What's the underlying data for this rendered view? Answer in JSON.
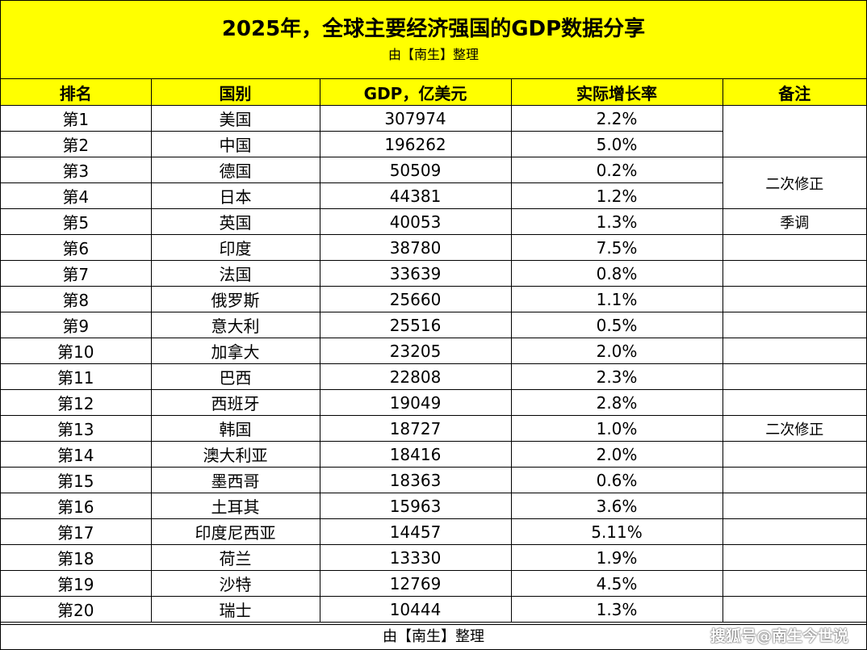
{
  "title": "2025年，全球主要经济强国的GDP数据分享",
  "subtitle": "由【南生】整理",
  "headers": [
    "排名",
    "国别",
    "GDP，亿美元",
    "实际增长率",
    "备注"
  ],
  "rows": [
    {
      "rank": "第1",
      "country": "美国",
      "gdp": "307974",
      "growth": "2.2%"
    },
    {
      "rank": "第2",
      "country": "中国",
      "gdp": "196262",
      "growth": "5.0%"
    },
    {
      "rank": "第3",
      "country": "德国",
      "gdp": "50509",
      "growth": "0.2%"
    },
    {
      "rank": "第4",
      "country": "日本",
      "gdp": "44381",
      "growth": "1.2%"
    },
    {
      "rank": "第5",
      "country": "英国",
      "gdp": "40053",
      "growth": "1.3%"
    },
    {
      "rank": "第6",
      "country": "印度",
      "gdp": "38780",
      "growth": "7.5%"
    },
    {
      "rank": "第7",
      "country": "法国",
      "gdp": "33639",
      "growth": "0.8%"
    },
    {
      "rank": "第8",
      "country": "俄罗斯",
      "gdp": "25660",
      "growth": "1.1%"
    },
    {
      "rank": "第9",
      "country": "意大利",
      "gdp": "25516",
      "growth": "0.5%"
    },
    {
      "rank": "第10",
      "country": "加拿大",
      "gdp": "23205",
      "growth": "2.0%"
    },
    {
      "rank": "第11",
      "country": "巴西",
      "gdp": "22808",
      "growth": "2.3%"
    },
    {
      "rank": "第12",
      "country": "西班牙",
      "gdp": "19049",
      "growth": "2.8%"
    },
    {
      "rank": "第13",
      "country": "韩国",
      "gdp": "18727",
      "growth": "1.0%"
    },
    {
      "rank": "第14",
      "country": "澳大利亚",
      "gdp": "18416",
      "growth": "2.0%"
    },
    {
      "rank": "第15",
      "country": "墨西哥",
      "gdp": "18363",
      "growth": "0.6%"
    },
    {
      "rank": "第16",
      "country": "土耳其",
      "gdp": "15963",
      "growth": "3.6%"
    },
    {
      "rank": "第17",
      "country": "印度尼西亚",
      "gdp": "14457",
      "growth": "5.11%"
    },
    {
      "rank": "第18",
      "country": "荷兰",
      "gdp": "13330",
      "growth": "1.9%"
    },
    {
      "rank": "第19",
      "country": "沙特",
      "gdp": "12769",
      "growth": "4.5%"
    },
    {
      "rank": "第20",
      "country": "瑞士",
      "gdp": "10444",
      "growth": "1.3%"
    }
  ],
  "notes": {
    "germany_japan": "二次修正",
    "uk": "季调",
    "korea": "二次修正"
  },
  "footer": "由【南生】整理",
  "watermark": "搜狐号@南生今世说",
  "colors": {
    "header_bg": "#ffff00",
    "border": "#000000"
  }
}
